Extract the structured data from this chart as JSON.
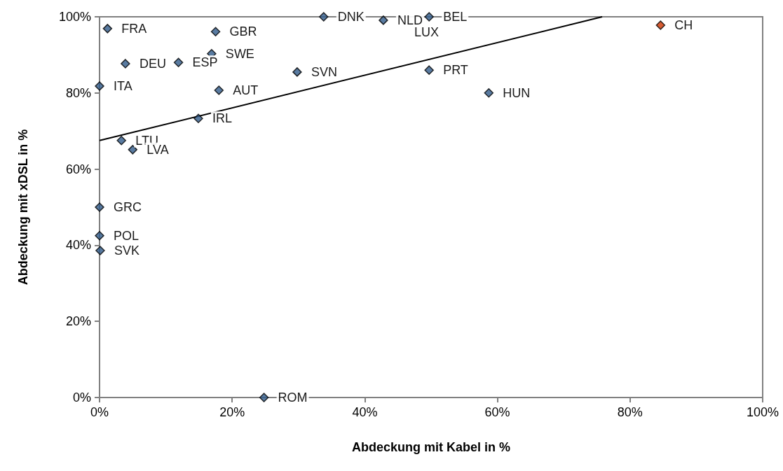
{
  "chart_data": {
    "type": "scatter",
    "xlabel": "Abdeckung mit Kabel in %",
    "ylabel": "Abdeckung mit xDSL in %",
    "xlim": [
      0,
      100
    ],
    "ylim": [
      0,
      100
    ],
    "xticks": [
      {
        "value": 0,
        "label": "0%"
      },
      {
        "value": 20,
        "label": "20%"
      },
      {
        "value": 40,
        "label": "40%"
      },
      {
        "value": 60,
        "label": "60%"
      },
      {
        "value": 80,
        "label": "80%"
      },
      {
        "value": 100,
        "label": "100%"
      }
    ],
    "yticks": [
      {
        "value": 0,
        "label": "0%"
      },
      {
        "value": 20,
        "label": "20%"
      },
      {
        "value": 40,
        "label": "40%"
      },
      {
        "value": 60,
        "label": "60%"
      },
      {
        "value": 80,
        "label": "80%"
      },
      {
        "value": 100,
        "label": "100%"
      }
    ],
    "grid": false,
    "marker": "diamond",
    "series": [
      {
        "color": "#2f5a8a",
        "x": [
          1.2,
          17.5,
          33.8,
          42.8,
          49.7,
          16.9,
          11.9,
          3.9,
          0,
          18,
          29.8,
          14.9,
          3.3,
          5,
          49.7,
          58.7,
          0,
          0,
          0.1,
          24.8
        ],
        "values": [
          96.9,
          96.1,
          100,
          99.1,
          100,
          90.3,
          88,
          87.7,
          81.8,
          80.7,
          85.5,
          73.3,
          67.5,
          65.1,
          86,
          80,
          50,
          42.5,
          38.6,
          0
        ]
      },
      {
        "color": "#cc3300",
        "x": [
          84.6
        ],
        "values": [
          97.8
        ]
      },
      {
        "type": "line",
        "color": "#000000",
        "marker": "none",
        "x": [
          0,
          75.8
        ],
        "values": [
          67.5,
          100
        ]
      }
    ],
    "annotations": [
      {
        "text": "FRA",
        "x": 1.2,
        "y": 96.9
      },
      {
        "text": "GBR",
        "x": 17.5,
        "y": 96.1
      },
      {
        "text": "DNK",
        "x": 33.8,
        "y": 100
      },
      {
        "text": "NLD",
        "x": 42.8,
        "y": 99.1
      },
      {
        "text": "BEL",
        "x": 49.7,
        "y": 100
      },
      {
        "text": "LUX",
        "x": 50,
        "y": 100
      },
      {
        "text": "SWE",
        "x": 16.9,
        "y": 90.3
      },
      {
        "text": "ESP",
        "x": 11.9,
        "y": 88
      },
      {
        "text": "DEU",
        "x": 3.9,
        "y": 87.7
      },
      {
        "text": "ITA",
        "x": 0,
        "y": 81.8
      },
      {
        "text": "AUT",
        "x": 18,
        "y": 80.7
      },
      {
        "text": "SVN",
        "x": 29.8,
        "y": 85.5
      },
      {
        "text": "IRL",
        "x": 14.9,
        "y": 73.3
      },
      {
        "text": "LTU",
        "x": 3.3,
        "y": 67.5
      },
      {
        "text": "LVA",
        "x": 5,
        "y": 65.1
      },
      {
        "text": "PRT",
        "x": 49.7,
        "y": 86
      },
      {
        "text": "HUN",
        "x": 58.7,
        "y": 80
      },
      {
        "text": "GRC",
        "x": 0,
        "y": 50
      },
      {
        "text": "POL",
        "x": 0,
        "y": 42.5
      },
      {
        "text": "SVK",
        "x": 0.1,
        "y": 38.6
      },
      {
        "text": "ROM",
        "x": 24.8,
        "y": 0
      },
      {
        "text": "CH",
        "x": 84.6,
        "y": 97.8
      }
    ]
  }
}
